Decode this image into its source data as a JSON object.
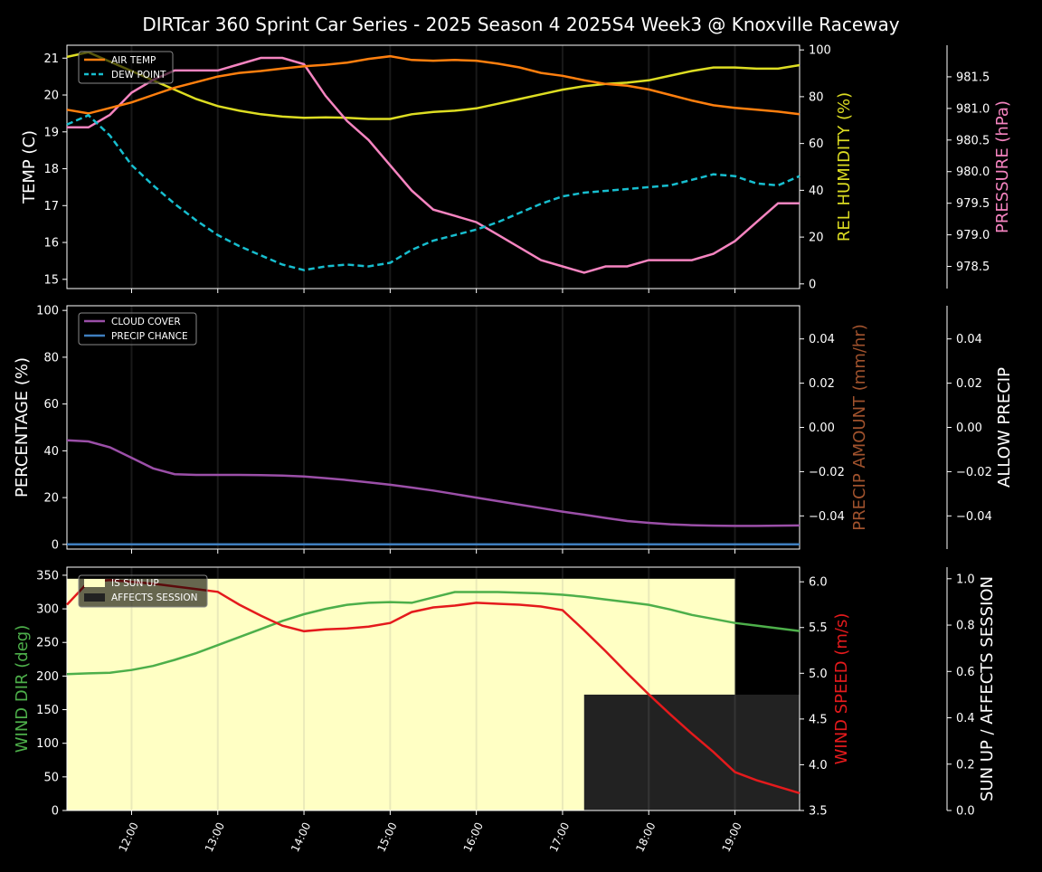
{
  "title": "DIRTcar 360 Sprint Car Series - 2025 Season 4 2025S4 Week3 @ Knoxville Raceway",
  "colors": {
    "air_temp": "#ff7f0e",
    "dew_point": "#17becf",
    "humidity": "#dddd22",
    "pressure": "#f584c0",
    "cloud": "#9b4fa8",
    "precip_chance": "#3f7fbf",
    "wind_dir": "#4daf4a",
    "wind_speed": "#e41a1c",
    "sun_up": "#ffffc4",
    "affects_session": "#222222",
    "precip_amount_label": "#a0522d"
  },
  "chart_data": [
    {
      "type": "line",
      "panel": "weather",
      "x_ticks": [
        "12:00",
        "13:00",
        "14:00",
        "15:00",
        "16:00",
        "17:00",
        "18:00",
        "19:00"
      ],
      "xlim": [
        "11:15",
        "19:45"
      ],
      "ylabel": "TEMP (C)",
      "ylim": [
        14.75,
        21.35
      ],
      "y_ticks": [
        "15",
        "16",
        "17",
        "18",
        "19",
        "20",
        "21"
      ],
      "y2label": "REL HUMIDITY (%)",
      "y2lim": [
        -2,
        102
      ],
      "y2_ticks": [
        "0",
        "20",
        "40",
        "60",
        "80",
        "100"
      ],
      "y3label": "PRESSURE (hPa)",
      "y3lim": [
        978.15,
        982.0
      ],
      "y3_ticks": [
        "978.5",
        "979.0",
        "979.5",
        "980.0",
        "980.5",
        "981.0",
        "981.5"
      ],
      "legend": [
        "AIR TEMP",
        "DEW POINT"
      ],
      "legend_position": "upper-left",
      "x": [
        "11:15",
        "11:30",
        "11:45",
        "12:00",
        "12:15",
        "12:30",
        "12:45",
        "13:00",
        "13:15",
        "13:30",
        "13:45",
        "14:00",
        "14:15",
        "14:30",
        "14:45",
        "15:00",
        "15:15",
        "15:30",
        "15:45",
        "16:00",
        "16:15",
        "16:30",
        "16:45",
        "17:00",
        "17:15",
        "17:30",
        "17:45",
        "18:00",
        "18:15",
        "18:30",
        "18:45",
        "19:00",
        "19:15",
        "19:30",
        "19:45"
      ],
      "series": [
        {
          "name": "AIR TEMP",
          "axis": "left",
          "style": "solid",
          "values": [
            19.6,
            19.5,
            19.65,
            19.8,
            20.0,
            20.2,
            20.35,
            20.5,
            20.6,
            20.65,
            20.72,
            20.78,
            20.82,
            20.88,
            20.98,
            21.05,
            20.95,
            20.93,
            20.95,
            20.93,
            20.85,
            20.75,
            20.6,
            20.52,
            20.4,
            20.3,
            20.25,
            20.15,
            20.0,
            19.85,
            19.72,
            19.65,
            19.6,
            19.55,
            19.48
          ]
        },
        {
          "name": "DEW POINT",
          "axis": "left",
          "style": "dashed",
          "values": [
            19.2,
            19.45,
            18.9,
            18.1,
            17.55,
            17.05,
            16.6,
            16.2,
            15.9,
            15.65,
            15.4,
            15.25,
            15.35,
            15.4,
            15.35,
            15.45,
            15.8,
            16.05,
            16.2,
            16.35,
            16.55,
            16.8,
            17.05,
            17.25,
            17.35,
            17.4,
            17.45,
            17.5,
            17.55,
            17.7,
            17.85,
            17.8,
            17.6,
            17.55,
            17.8
          ]
        },
        {
          "name": "REL HUMIDITY",
          "axis": "right",
          "style": "solid",
          "values": [
            97,
            99,
            95,
            91,
            87,
            83,
            79,
            76,
            74,
            72.5,
            71.5,
            71,
            71.2,
            71,
            70.5,
            70.5,
            72.5,
            73.5,
            74,
            75,
            77,
            79,
            81,
            83,
            84.5,
            85.5,
            86,
            87,
            89,
            91,
            92.5,
            92.5,
            92,
            92,
            93.5
          ]
        },
        {
          "name": "PRESSURE",
          "axis": "far-right",
          "style": "solid",
          "values": [
            980.7,
            980.7,
            980.9,
            981.25,
            981.45,
            981.6,
            981.6,
            981.6,
            981.7,
            981.8,
            981.8,
            981.7,
            981.2,
            980.8,
            980.5,
            980.1,
            979.7,
            979.4,
            979.3,
            979.2,
            979.0,
            978.8,
            978.6,
            978.5,
            978.4,
            978.5,
            978.5,
            978.6,
            978.6,
            978.6,
            978.7,
            978.9,
            979.2,
            979.5,
            979.5
          ]
        }
      ]
    },
    {
      "type": "line",
      "panel": "precip",
      "ylabel": "PERCENTAGE (%)",
      "ylim": [
        -2,
        102
      ],
      "y_ticks": [
        "0",
        "20",
        "40",
        "60",
        "80",
        "100"
      ],
      "y2label": "PRECIP AMOUNT (mm/hr)",
      "y2_ticks": [
        "−0.04",
        "−0.02",
        "0.00",
        "0.02",
        "0.04"
      ],
      "y3label": "ALLOW PRECIP",
      "y3_ticks": [
        "−0.04",
        "−0.02",
        "0.00",
        "0.02",
        "0.04"
      ],
      "legend": [
        "CLOUD COVER",
        "PRECIP CHANCE"
      ],
      "legend_position": "upper-left",
      "series": [
        {
          "name": "CLOUD COVER",
          "values": [
            44.5,
            44,
            41.5,
            37,
            32.5,
            30,
            29.7,
            29.7,
            29.7,
            29.6,
            29.4,
            29,
            28.3,
            27.5,
            26.5,
            25.5,
            24.3,
            23,
            21.5,
            20,
            18.5,
            17,
            15.5,
            14,
            12.7,
            11.3,
            10,
            9.2,
            8.6,
            8.2,
            8,
            7.9,
            7.9,
            8,
            8.1
          ]
        },
        {
          "name": "PRECIP CHANCE",
          "values": [
            0,
            0,
            0,
            0,
            0,
            0,
            0,
            0,
            0,
            0,
            0,
            0,
            0,
            0,
            0,
            0,
            0,
            0,
            0,
            0,
            0,
            0,
            0,
            0,
            0,
            0,
            0,
            0,
            0,
            0,
            0,
            0,
            0,
            0,
            0
          ]
        }
      ]
    },
    {
      "type": "line",
      "panel": "wind",
      "ylabel": "WIND DIR (deg)",
      "ylim": [
        0,
        362
      ],
      "y_ticks": [
        "0",
        "50",
        "100",
        "150",
        "200",
        "250",
        "300",
        "350"
      ],
      "y2label": "WIND SPEED (m/s)",
      "y2lim": [
        3.5,
        6.16
      ],
      "y2_ticks": [
        "3.5",
        "4.0",
        "4.5",
        "5.0",
        "5.5",
        "6.0"
      ],
      "y3label": "SUN UP / AFFECTS SESSION",
      "y3lim": [
        0,
        1.05
      ],
      "y3_ticks": [
        "0.0",
        "0.2",
        "0.4",
        "0.6",
        "0.8",
        "1.0"
      ],
      "legend": [
        "IS SUN UP",
        "AFFECTS SESSION"
      ],
      "legend_position": "upper-left",
      "sun_up": {
        "start": "11:15",
        "end": "19:00",
        "value": 1.0
      },
      "affects_session": {
        "start": "17:15",
        "end": "19:45",
        "value": 0.5
      },
      "series": [
        {
          "name": "WIND DIR",
          "axis": "left",
          "values": [
            203,
            204,
            205,
            209,
            215,
            224,
            234,
            246,
            258,
            270,
            282,
            292,
            300,
            306,
            309,
            310,
            309,
            317,
            325,
            325,
            325,
            324,
            323,
            321,
            318,
            314,
            310,
            306,
            299,
            291,
            285,
            279,
            275,
            271,
            267
          ]
        },
        {
          "name": "WIND SPEED",
          "axis": "right",
          "values": [
            5.75,
            6.0,
            6.02,
            6.0,
            5.98,
            5.95,
            5.92,
            5.89,
            5.75,
            5.63,
            5.52,
            5.46,
            5.48,
            5.49,
            5.51,
            5.55,
            5.67,
            5.72,
            5.74,
            5.77,
            5.76,
            5.75,
            5.73,
            5.69,
            5.47,
            5.24,
            5.0,
            4.77,
            4.55,
            4.34,
            4.14,
            3.92,
            3.83,
            3.76,
            3.69
          ]
        }
      ]
    }
  ]
}
